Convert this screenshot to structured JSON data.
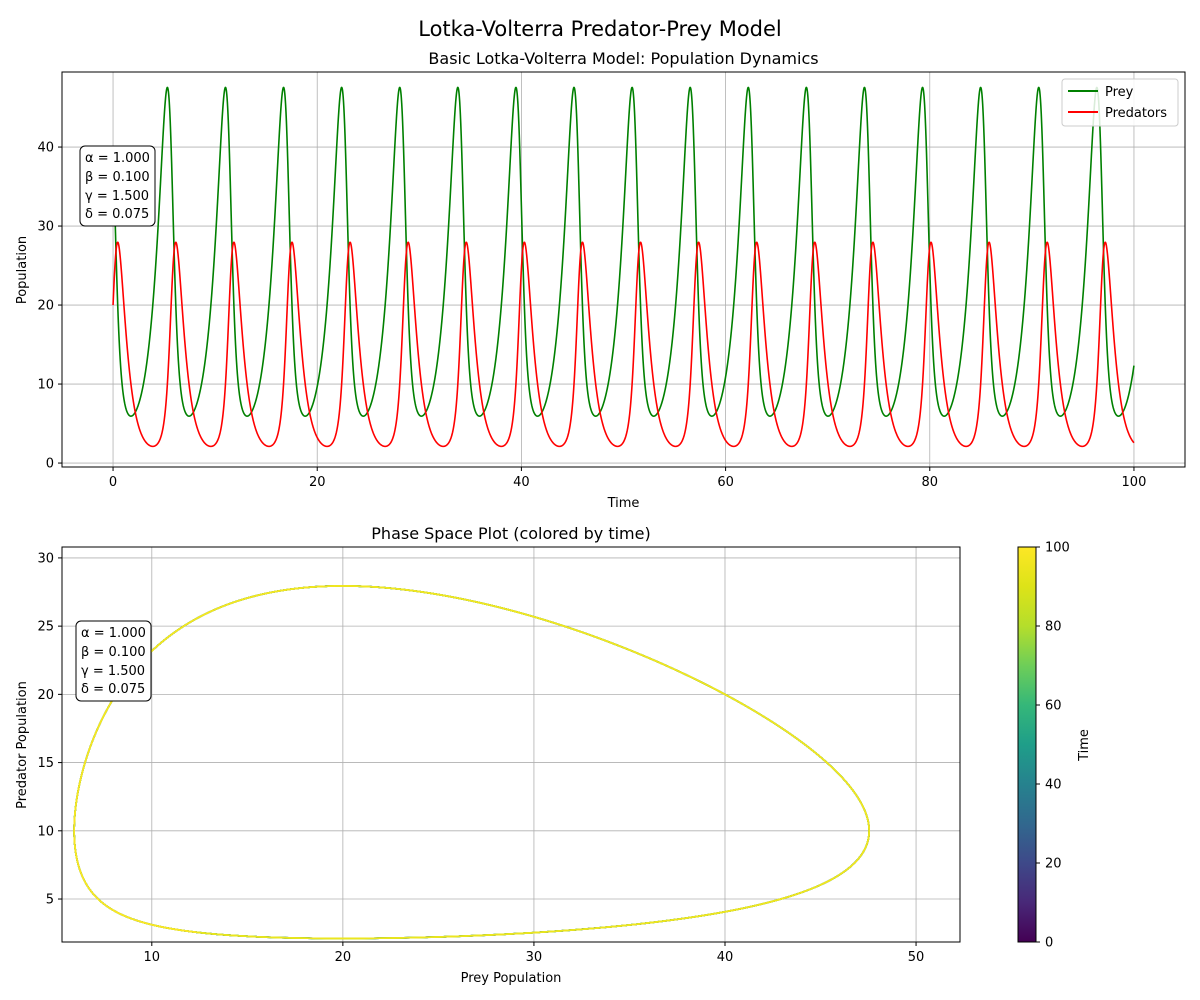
{
  "figure": {
    "title": "Lotka-Volterra Predator-Prey Model"
  },
  "chart_data": [
    {
      "type": "line",
      "title": "Basic Lotka-Volterra Model: Population Dynamics",
      "xlabel": "Time",
      "ylabel": "Population",
      "xlim": [
        -5,
        105
      ],
      "ylim": [
        -0.5,
        49.5
      ],
      "xticks": [
        0,
        20,
        40,
        60,
        80,
        100
      ],
      "yticks": [
        0,
        10,
        20,
        30,
        40
      ],
      "grid": true,
      "legend_position": "top-right",
      "model": {
        "alpha": 1.0,
        "beta": 0.1,
        "gamma": 1.5,
        "delta": 0.075,
        "initial_prey": 40,
        "initial_predators": 20,
        "t_start": 0,
        "t_end": 100
      },
      "series": [
        {
          "name": "Prey",
          "color": "#008000",
          "variable": "prey",
          "max": 47.5,
          "min": 6.0,
          "period": 5.77
        },
        {
          "name": "Predators",
          "color": "#ff0000",
          "variable": "predators",
          "max": 27.9,
          "min": 2.2,
          "period": 5.77
        }
      ],
      "parameters_text": [
        "α = 1.000",
        "β = 0.100",
        "γ = 1.500",
        "δ = 0.075"
      ]
    },
    {
      "type": "line",
      "title": "Phase Space Plot (colored by time)",
      "xlabel": "Prey Population",
      "ylabel": "Predator Population",
      "xlim": [
        5.3,
        52.3
      ],
      "ylim": [
        1.85,
        30.8
      ],
      "xticks": [
        10,
        20,
        30,
        40,
        50
      ],
      "yticks": [
        5,
        10,
        15,
        20,
        25,
        30
      ],
      "grid": true,
      "colormap": "viridis",
      "colorbar": {
        "label": "Time",
        "range": [
          0,
          100
        ],
        "ticks": [
          0,
          20,
          40,
          60,
          80,
          100
        ]
      },
      "parameters_text": [
        "α = 1.000",
        "β = 0.100",
        "γ = 1.500",
        "δ = 0.075"
      ]
    }
  ]
}
